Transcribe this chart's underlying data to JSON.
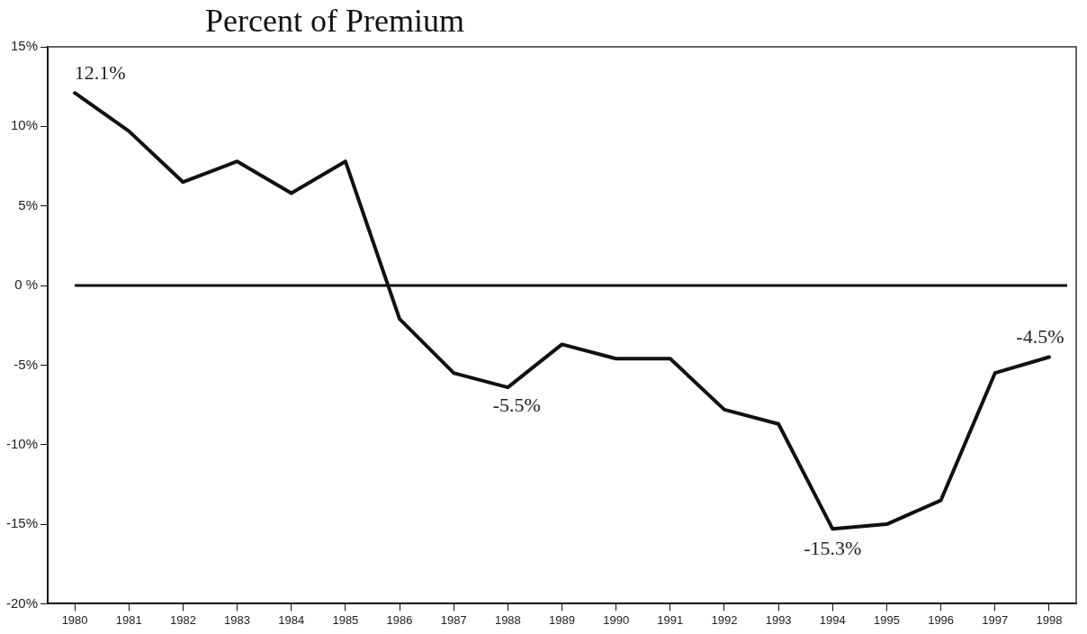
{
  "chart_data": {
    "type": "line",
    "title": "Percent of Premium",
    "categories": [
      "1980",
      "1981",
      "1982",
      "1983",
      "1984",
      "1985",
      "1986",
      "1987",
      "1988",
      "1989",
      "1990",
      "1991",
      "1992",
      "1993",
      "1994",
      "1995",
      "1996",
      "1997",
      "1998"
    ],
    "values": [
      12.1,
      9.7,
      6.5,
      7.8,
      5.8,
      7.8,
      -2.1,
      -5.5,
      -6.4,
      -3.7,
      -4.6,
      -4.6,
      -7.8,
      -8.7,
      -15.3,
      -15.0,
      -13.5,
      -5.5,
      -4.5
    ],
    "value_labels": [
      "12.1%",
      null,
      null,
      null,
      null,
      null,
      null,
      null,
      null,
      null,
      null,
      null,
      null,
      null,
      "-15.3%",
      null,
      null,
      null,
      "-4.5%"
    ],
    "annotations": [
      {
        "text": "-5.5%",
        "x": "1988",
        "y": -6.4
      }
    ],
    "color": "#111111",
    "ylim": [
      -20,
      15
    ],
    "yticks": [
      {
        "value": -20,
        "label": "-20%"
      },
      {
        "value": -15,
        "label": "-15%"
      },
      {
        "value": -10,
        "label": "-10%"
      },
      {
        "value": -5,
        "label": "-5%"
      },
      {
        "value": 0,
        "label": "0 %"
      },
      {
        "value": 5,
        "label": "5%"
      },
      {
        "value": 10,
        "label": "10%"
      },
      {
        "value": 15,
        "label": "15%"
      }
    ],
    "ref_lines": [
      {
        "axis": "y",
        "value": 0,
        "color": "#111111"
      }
    ],
    "grid": false,
    "legend": false,
    "marker": "none",
    "line_style": "solid"
  }
}
